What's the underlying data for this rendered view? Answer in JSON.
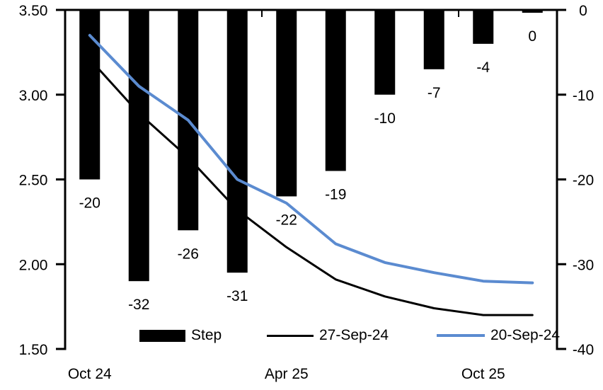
{
  "chart_data": {
    "type": "combo",
    "background": "#ffffff",
    "grid": false,
    "left_axis": {
      "min": 1.5,
      "max": 3.5,
      "tick_labels": [
        "3.50",
        "3.00",
        "2.50",
        "2.00",
        "1.50"
      ]
    },
    "right_axis": {
      "min": -40,
      "max": 0,
      "tick_labels": [
        "0",
        "-10",
        "-20",
        "-30",
        "-40"
      ]
    },
    "x_axis": {
      "num_categories": 10,
      "group_tick_every": 4,
      "tick_labels": [
        {
          "label": "Oct 24",
          "category": 0
        },
        {
          "label": "Apr 25",
          "category": 4
        },
        {
          "label": "Oct 25",
          "category": 8
        }
      ]
    },
    "series": [
      {
        "name": "Step",
        "type": "bar",
        "axis": "right",
        "color": "#000000",
        "values": [
          -20,
          -32,
          -26,
          -31,
          -22,
          -19,
          -10,
          -7,
          -4,
          0
        ],
        "data_labels": [
          "-20",
          "-32",
          "-26",
          "-31",
          "-22",
          "-19",
          "-10",
          "-7",
          "-4",
          "0"
        ]
      },
      {
        "name": "27-Sep-24",
        "type": "line",
        "axis": "left",
        "color": "#000000",
        "stroke_width": 3,
        "values": [
          3.21,
          2.89,
          2.63,
          2.32,
          2.1,
          1.91,
          1.81,
          1.74,
          1.7,
          1.7
        ]
      },
      {
        "name": "20-Sep-24",
        "type": "line",
        "axis": "left",
        "color": "#5B8BD0",
        "stroke_width": 4,
        "values": [
          3.35,
          3.05,
          2.85,
          2.5,
          2.36,
          2.12,
          2.01,
          1.95,
          1.9,
          1.89
        ]
      }
    ],
    "legend": {
      "position": "bottom-inside",
      "entries": [
        "Step",
        "27-Sep-24",
        "20-Sep-24"
      ]
    }
  }
}
